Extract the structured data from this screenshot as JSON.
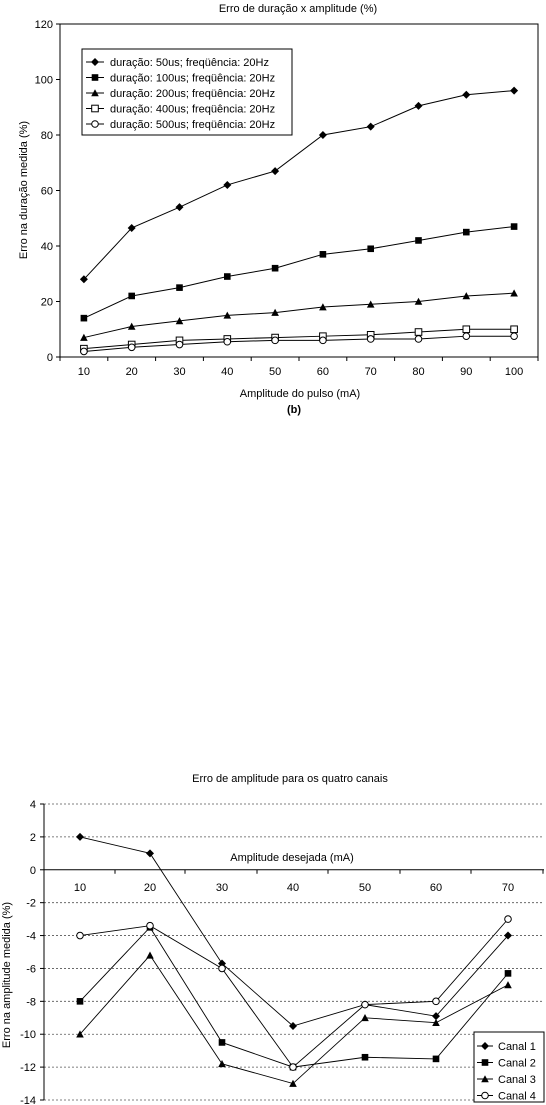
{
  "chart_data": [
    {
      "type": "line",
      "title": "Erro de duração x amplitude (%)",
      "xlabel": "Amplitude do pulso (mA)",
      "ylabel": "Erro na duração medida (%)",
      "caption": "(b)",
      "categories": [
        "10",
        "20",
        "30",
        "40",
        "50",
        "60",
        "70",
        "80",
        "90",
        "100"
      ],
      "ylim": [
        0,
        120
      ],
      "yticks": [
        "0",
        "20",
        "40",
        "60",
        "80",
        "100",
        "120"
      ],
      "legend_position": "top-left",
      "grid": false,
      "series": [
        {
          "name": "duração: 50us; freqüência: 20Hz",
          "marker": "diamond",
          "values": [
            28,
            46.5,
            54,
            62,
            67,
            80,
            83,
            90.5,
            94.5,
            96
          ]
        },
        {
          "name": "duração: 100us; freqüência: 20Hz",
          "marker": "square",
          "values": [
            14,
            22,
            25,
            29,
            32,
            37,
            39,
            42,
            45,
            47
          ]
        },
        {
          "name": "duração: 200us; freqüência: 20Hz",
          "marker": "triangle",
          "values": [
            7,
            11,
            13,
            15,
            16,
            18,
            19,
            20,
            22,
            23
          ]
        },
        {
          "name": "duração: 400us; freqüência: 20Hz",
          "marker": "open-square",
          "values": [
            3,
            4.5,
            6,
            6.5,
            7,
            7.5,
            8,
            9,
            10,
            10
          ]
        },
        {
          "name": "duração: 500us; freqüência: 20Hz",
          "marker": "open-circle",
          "values": [
            2,
            3.5,
            4.5,
            5.5,
            6,
            6,
            6.5,
            6.5,
            7.5,
            7.5
          ]
        }
      ]
    },
    {
      "type": "line",
      "title": "Erro de amplitude para os quatro canais",
      "xlabel": "Amplitude desejada (mA)",
      "ylabel": "Erro na amplitude medida (%)",
      "categories": [
        "10",
        "20",
        "30",
        "40",
        "50",
        "60",
        "70"
      ],
      "ylim": [
        -14,
        4
      ],
      "yticks": [
        "-14",
        "-12",
        "-10",
        "-8",
        "-6",
        "-4",
        "-2",
        "0",
        "2",
        "4"
      ],
      "legend_position": "bottom-right",
      "grid": true,
      "series": [
        {
          "name": "Canal 1",
          "marker": "diamond",
          "values": [
            2,
            1,
            -5.7,
            -9.5,
            -8.2,
            -8.9,
            -4
          ]
        },
        {
          "name": "Canal 2",
          "marker": "square",
          "values": [
            -8,
            -3.5,
            -10.5,
            -12,
            -11.4,
            -11.5,
            -6.3
          ]
        },
        {
          "name": "Canal 3",
          "marker": "triangle",
          "values": [
            -10,
            -5.2,
            -11.8,
            -13,
            -9,
            -9.3,
            -7
          ]
        },
        {
          "name": "Canal 4",
          "marker": "open-circle",
          "values": [
            -4,
            -3.4,
            -6,
            -12,
            -8.2,
            -8,
            -3
          ]
        }
      ]
    }
  ]
}
